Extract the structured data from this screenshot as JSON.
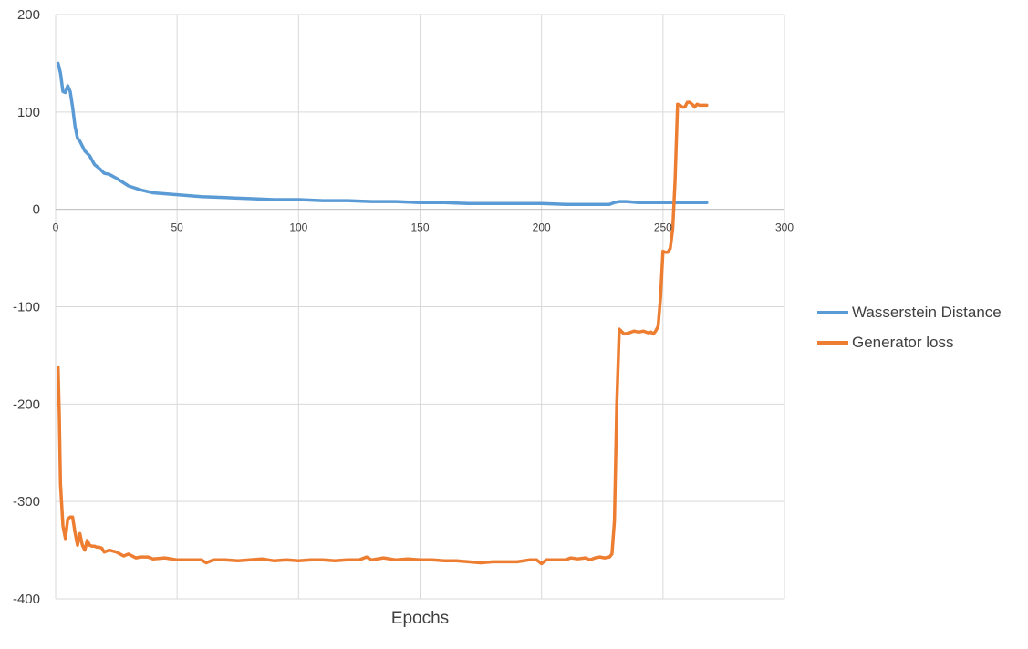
{
  "chart_data": {
    "type": "line",
    "title": "",
    "xlabel": "Epochs",
    "ylabel": "",
    "xlim": [
      0,
      300
    ],
    "ylim": [
      -400,
      200
    ],
    "xticks": [
      0,
      50,
      100,
      150,
      200,
      250,
      300
    ],
    "yticks": [
      200,
      100,
      0,
      -100,
      -200,
      -300,
      -400
    ],
    "grid": true,
    "legend_position": "right",
    "series": [
      {
        "name": "Wasserstein Distance",
        "color": "#5b9bd5",
        "x": [
          1,
          2,
          3,
          4,
          5,
          6,
          7,
          8,
          9,
          10,
          12,
          14,
          16,
          18,
          20,
          22,
          25,
          30,
          35,
          40,
          50,
          60,
          70,
          80,
          90,
          100,
          110,
          120,
          130,
          140,
          150,
          160,
          170,
          180,
          190,
          200,
          210,
          220,
          228,
          230,
          232,
          235,
          240,
          245,
          250,
          255,
          260,
          265,
          268
        ],
        "y": [
          150,
          140,
          121,
          120,
          127,
          121,
          105,
          85,
          73,
          70,
          60,
          55,
          46,
          42,
          37,
          36,
          32,
          24,
          20,
          17,
          15,
          13,
          12,
          11,
          10,
          10,
          9,
          9,
          8,
          8,
          7,
          7,
          6,
          6,
          6,
          6,
          5,
          5,
          5,
          7,
          8,
          8,
          7,
          7,
          7,
          7,
          7,
          7,
          7
        ]
      },
      {
        "name": "Generator loss",
        "color": "#ed7d31",
        "x": [
          1,
          1.5,
          2,
          3,
          4,
          5,
          6,
          7,
          8,
          9,
          10,
          11,
          12,
          13,
          14,
          15,
          16,
          17,
          18,
          19,
          20,
          22,
          25,
          28,
          30,
          33,
          35,
          38,
          40,
          45,
          50,
          55,
          60,
          62,
          65,
          70,
          75,
          80,
          85,
          90,
          95,
          100,
          105,
          110,
          115,
          120,
          125,
          128,
          130,
          135,
          140,
          145,
          150,
          155,
          160,
          165,
          170,
          175,
          180,
          185,
          190,
          195,
          198,
          200,
          202,
          205,
          210,
          212,
          215,
          218,
          220,
          222,
          224,
          226,
          228,
          229,
          230,
          231,
          232,
          234,
          236,
          238,
          240,
          242,
          244,
          245,
          246,
          247,
          248,
          249,
          250,
          251,
          252,
          253,
          254,
          255,
          256,
          257,
          258,
          259,
          260,
          261,
          262,
          263,
          264,
          265,
          266,
          268
        ],
        "y": [
          -162,
          -210,
          -282,
          -325,
          -338,
          -318,
          -316,
          -316,
          -332,
          -345,
          -333,
          -345,
          -350,
          -340,
          -345,
          -346,
          -346,
          -347,
          -347,
          -348,
          -352,
          -350,
          -352,
          -356,
          -354,
          -358,
          -357,
          -357,
          -359,
          -358,
          -360,
          -360,
          -360,
          -363,
          -360,
          -360,
          -361,
          -360,
          -359,
          -361,
          -360,
          -361,
          -360,
          -360,
          -361,
          -360,
          -360,
          -357,
          -360,
          -358,
          -360,
          -359,
          -360,
          -360,
          -361,
          -361,
          -362,
          -363,
          -362,
          -362,
          -362,
          -360,
          -360,
          -364,
          -360,
          -360,
          -360,
          -358,
          -359,
          -358,
          -360,
          -358,
          -357,
          -358,
          -357,
          -354,
          -320,
          -200,
          -123,
          -128,
          -127,
          -125,
          -126,
          -125,
          -127,
          -126,
          -128,
          -125,
          -120,
          -90,
          -43,
          -44,
          -44,
          -40,
          -20,
          30,
          108,
          107,
          105,
          105,
          110,
          110,
          108,
          105,
          108,
          107,
          107,
          107
        ]
      }
    ]
  }
}
